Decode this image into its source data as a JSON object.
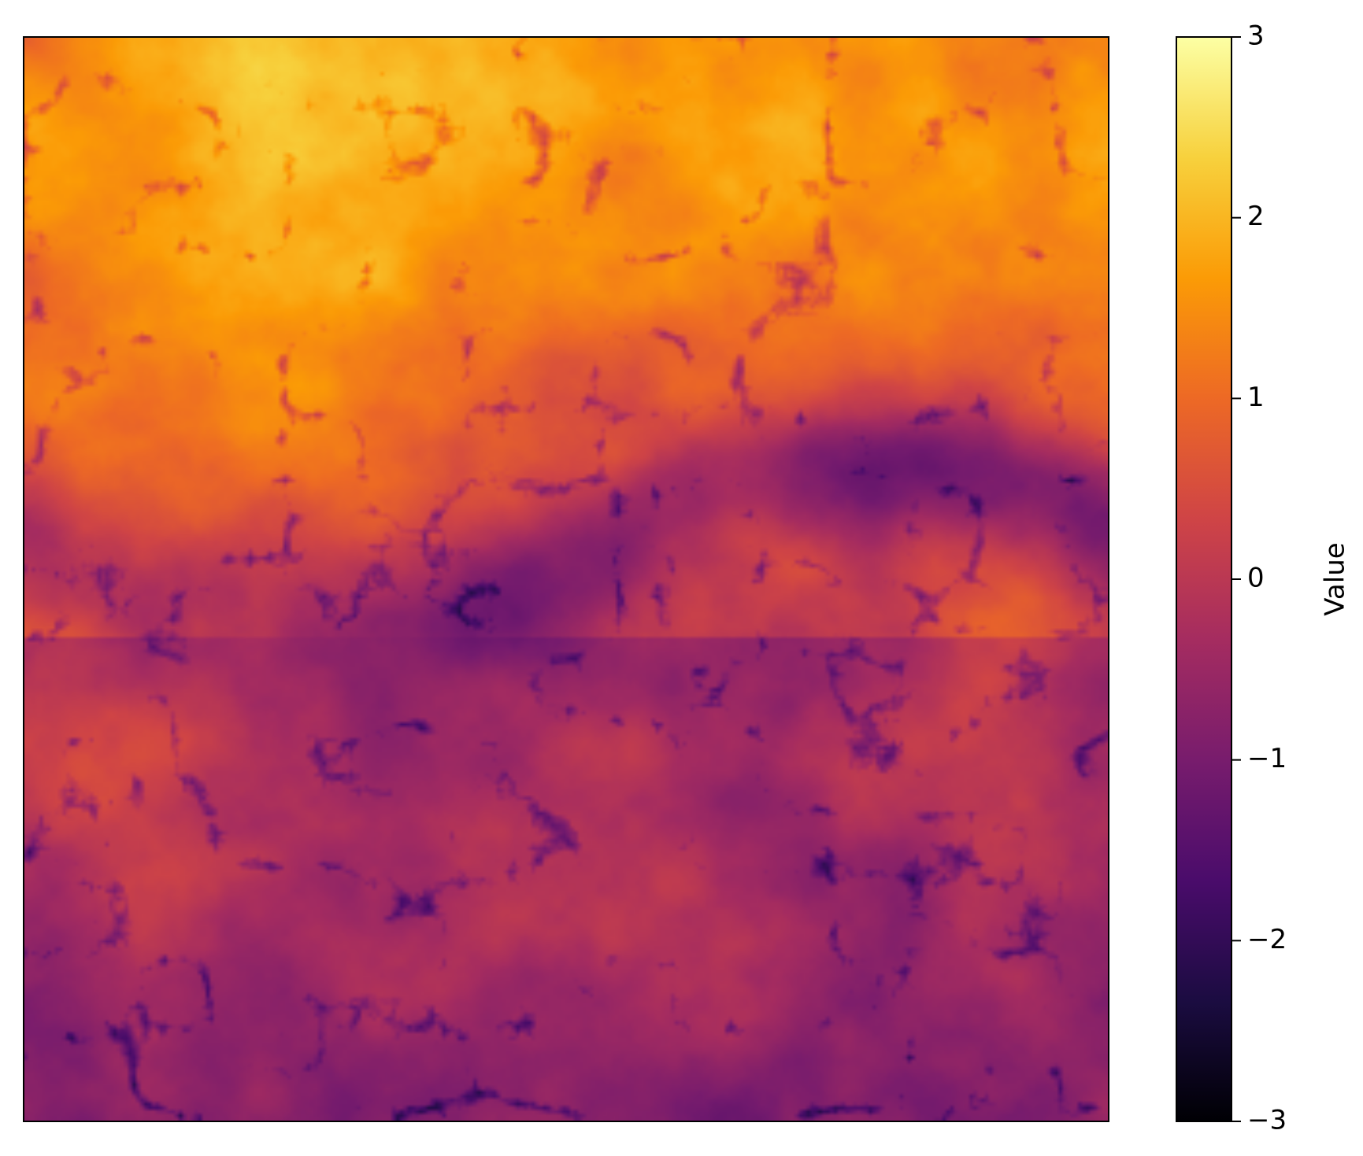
{
  "chart_data": {
    "type": "heatmap",
    "title": "",
    "xlabel": "",
    "ylabel": "",
    "colormap": "inferno",
    "colormap_stops": [
      "#000004",
      "#1b0c41",
      "#4a0c6b",
      "#781c6d",
      "#a52c60",
      "#cf4446",
      "#ed6925",
      "#fb9b06",
      "#f7d13d",
      "#fcffa4"
    ],
    "colorbar": {
      "label": "Value",
      "vmin": -3,
      "vmax": 3,
      "ticks": [
        {
          "value": 3,
          "label": "3"
        },
        {
          "value": 2,
          "label": "2"
        },
        {
          "value": 1,
          "label": "1"
        },
        {
          "value": 0,
          "label": "0"
        },
        {
          "value": -1,
          "label": "−1"
        },
        {
          "value": -2,
          "label": "−2"
        },
        {
          "value": -3,
          "label": "−3"
        }
      ]
    },
    "axes_ticks_visible": false,
    "description_of_field": "terrain-like field with dendritic channel network"
  }
}
